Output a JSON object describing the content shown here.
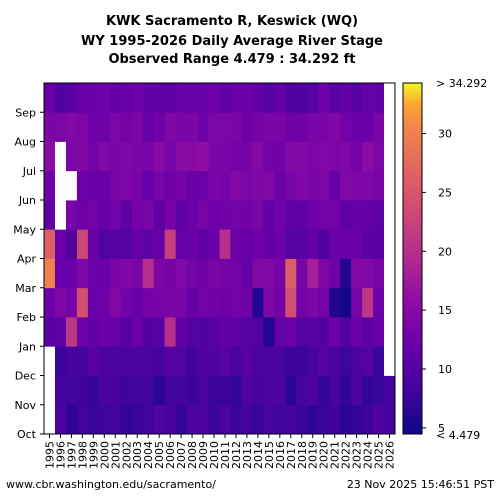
{
  "chart_data": {
    "type": "heatmap",
    "title": [
      "KWK Sacramento R, Keswick (WQ)",
      "WY 1995-2026 Daily Average River Stage",
      "Observed Range 4.479 : 34.292 ft"
    ],
    "xlabel": "",
    "ylabel": "",
    "x_categories": [
      "1995",
      "1996",
      "1997",
      "1998",
      "1999",
      "2000",
      "2001",
      "2002",
      "2003",
      "2004",
      "2005",
      "2006",
      "2007",
      "2008",
      "2009",
      "2010",
      "2011",
      "2012",
      "2013",
      "2014",
      "2015",
      "2016",
      "2017",
      "2018",
      "2019",
      "2020",
      "2021",
      "2022",
      "2023",
      "2024",
      "2025",
      "2026"
    ],
    "y_categories": [
      "Oct",
      "Nov",
      "Dec",
      "Jan",
      "Feb",
      "Mar",
      "Apr",
      "May",
      "Jun",
      "Jul",
      "Aug",
      "Sep"
    ],
    "value_range": [
      4.479,
      34.292
    ],
    "colorbar": {
      "ticks": [
        5,
        10,
        15,
        20,
        25,
        30
      ],
      "top_label": "> 34.292",
      "bottom_label": "< 4.479",
      "colormap": "plasma"
    },
    "monthly_typical_values": {
      "Oct": 8,
      "Nov": 8,
      "Dec": 9,
      "Jan": 11,
      "Feb": 13,
      "Mar": 13,
      "Apr": 11,
      "May": 12,
      "Jun": 13,
      "Jul": 14,
      "Aug": 13,
      "Sep": 11
    },
    "notable_highs": [
      {
        "year": "1995",
        "month": "Mar",
        "value": 30
      },
      {
        "year": "1995",
        "month": "Apr",
        "value": 26
      },
      {
        "year": "1997",
        "month": "Jan",
        "value": 21
      },
      {
        "year": "1998",
        "month": "Feb",
        "value": 24
      },
      {
        "year": "1998",
        "month": "Apr",
        "value": 23
      },
      {
        "year": "2004",
        "month": "Mar",
        "value": 20
      },
      {
        "year": "2006",
        "month": "Jan",
        "value": 20
      },
      {
        "year": "2006",
        "month": "Apr",
        "value": 22
      },
      {
        "year": "2011",
        "month": "Apr",
        "value": 20
      },
      {
        "year": "2017",
        "month": "Feb",
        "value": 24
      },
      {
        "year": "2017",
        "month": "Mar",
        "value": 26
      },
      {
        "year": "2019",
        "month": "Mar",
        "value": 18
      },
      {
        "year": "2024",
        "month": "Feb",
        "value": 21
      }
    ],
    "notable_lows": [
      {
        "year": "2014",
        "month": "Feb",
        "value": 6
      },
      {
        "year": "2015",
        "month": "Jan",
        "value": 6
      },
      {
        "year": "2021",
        "month": "Feb",
        "value": 6
      },
      {
        "year": "2022",
        "month": "Feb",
        "value": 5
      },
      {
        "year": "2022",
        "month": "Mar",
        "value": 6
      }
    ],
    "missing_periods": [
      {
        "year": "1996",
        "from_month": "May",
        "to_month": "Jul"
      },
      {
        "year": "1997",
        "from_month": "Jun",
        "to_month": "Jun"
      },
      {
        "year": "1995",
        "from_month": "Oct",
        "to_month": "Dec"
      },
      {
        "year": "2026",
        "from_month": "Dec",
        "to_month": "Sep"
      }
    ]
  },
  "footer": {
    "source": "www.cbr.washington.edu/sacramento/",
    "timestamp": "23 Nov 2025 15:46:51 PST"
  }
}
